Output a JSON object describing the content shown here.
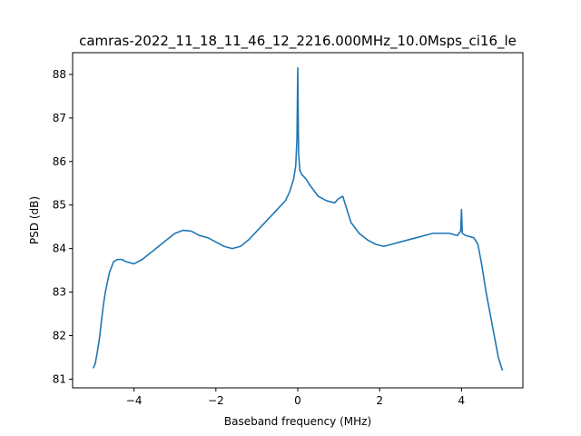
{
  "chart_data": {
    "type": "line",
    "title": "camras-2022_11_18_11_46_12_2216.000MHz_10.0Msps_ci16_le",
    "xlabel": "Baseband frequency (MHz)",
    "ylabel": "PSD (dB)",
    "xlim": [
      -5.5,
      5.5
    ],
    "ylim": [
      80.8,
      88.5
    ],
    "xticks": [
      -4,
      -2,
      0,
      2,
      4
    ],
    "xtick_labels": [
      "−4",
      "−2",
      "0",
      "2",
      "4"
    ],
    "yticks": [
      81,
      82,
      83,
      84,
      85,
      86,
      87,
      88
    ],
    "ytick_labels": [
      "81",
      "82",
      "83",
      "84",
      "85",
      "86",
      "87",
      "88"
    ],
    "grid": false,
    "series": [
      {
        "color": "#1f77b4",
        "x": [
          -5.0,
          -4.95,
          -4.9,
          -4.85,
          -4.8,
          -4.75,
          -4.7,
          -4.6,
          -4.5,
          -4.4,
          -4.3,
          -4.2,
          -4.0,
          -3.8,
          -3.6,
          -3.4,
          -3.2,
          -3.0,
          -2.8,
          -2.6,
          -2.4,
          -2.2,
          -2.0,
          -1.8,
          -1.6,
          -1.4,
          -1.2,
          -1.0,
          -0.8,
          -0.6,
          -0.4,
          -0.3,
          -0.2,
          -0.1,
          -0.05,
          -0.02,
          0.0,
          0.02,
          0.05,
          0.1,
          0.2,
          0.3,
          0.5,
          0.7,
          0.9,
          1.0,
          1.1,
          1.2,
          1.3,
          1.5,
          1.7,
          1.9,
          2.1,
          2.3,
          2.5,
          2.7,
          2.9,
          3.1,
          3.3,
          3.5,
          3.7,
          3.9,
          3.98,
          4.0,
          4.02,
          4.1,
          4.3,
          4.4,
          4.5,
          4.6,
          4.7,
          4.8,
          4.9,
          5.0
        ],
        "y": [
          81.25,
          81.35,
          81.6,
          81.9,
          82.3,
          82.7,
          83.0,
          83.45,
          83.7,
          83.75,
          83.75,
          83.7,
          83.65,
          83.75,
          83.9,
          84.05,
          84.2,
          84.35,
          84.42,
          84.4,
          84.3,
          84.25,
          84.15,
          84.05,
          84.0,
          84.05,
          84.2,
          84.4,
          84.6,
          84.8,
          85.0,
          85.1,
          85.3,
          85.6,
          85.9,
          86.5,
          88.15,
          86.2,
          85.8,
          85.7,
          85.6,
          85.45,
          85.2,
          85.1,
          85.05,
          85.15,
          85.2,
          84.9,
          84.6,
          84.35,
          84.2,
          84.1,
          84.05,
          84.1,
          84.15,
          84.2,
          84.25,
          84.3,
          84.35,
          84.35,
          84.35,
          84.3,
          84.4,
          84.9,
          84.35,
          84.3,
          84.25,
          84.1,
          83.6,
          83.0,
          82.5,
          82.0,
          81.5,
          81.2
        ]
      }
    ]
  }
}
